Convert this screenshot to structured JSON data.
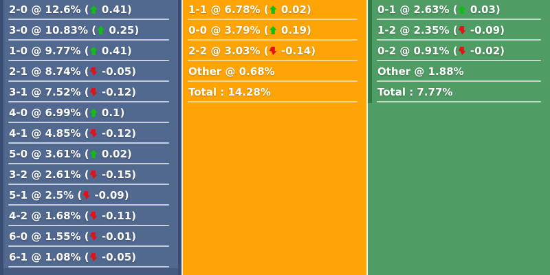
{
  "colors": {
    "page_bg": "#f6f2e6",
    "home_bg": "#51688f",
    "home_border": "#3a4e74",
    "home_divider": "#c7d0e0",
    "home_partial": "#475a80",
    "draw_bg": "#ffa405",
    "draw_divider": "#ffd695",
    "away_bg": "#4f9c64",
    "away_border": "#2f7c4b",
    "away_divider": "#c2dcc8",
    "up": "#0fbe12",
    "down": "#e31219",
    "text": "#ffffff"
  },
  "panels": {
    "home": {
      "cutoff_row_visible": true,
      "rows": [
        {
          "score": "2-0",
          "percent": "12.6%",
          "delta": "0.41",
          "direction": "up",
          "text": "2-0 @ 12.6% (",
          "delta_text": " 0.41)"
        },
        {
          "score": "3-0",
          "percent": "10.83%",
          "delta": "0.25",
          "direction": "up",
          "text": "3-0 @ 10.83% (",
          "delta_text": " 0.25)"
        },
        {
          "score": "1-0",
          "percent": "9.77%",
          "delta": "0.41",
          "direction": "up",
          "text": "1-0 @ 9.77% (",
          "delta_text": " 0.41)"
        },
        {
          "score": "2-1",
          "percent": "8.74%",
          "delta": "-0.05",
          "direction": "down",
          "text": "2-1 @ 8.74% (",
          "delta_text": " -0.05)"
        },
        {
          "score": "3-1",
          "percent": "7.52%",
          "delta": "-0.12",
          "direction": "down",
          "text": "3-1 @ 7.52% (",
          "delta_text": " -0.12)"
        },
        {
          "score": "4-0",
          "percent": "6.99%",
          "delta": "0.1",
          "direction": "up",
          "text": "4-0 @ 6.99% (",
          "delta_text": " 0.1)"
        },
        {
          "score": "4-1",
          "percent": "4.85%",
          "delta": "-0.12",
          "direction": "down",
          "text": "4-1 @ 4.85% (",
          "delta_text": " -0.12)"
        },
        {
          "score": "5-0",
          "percent": "3.61%",
          "delta": "0.02",
          "direction": "up",
          "text": "5-0 @ 3.61% (",
          "delta_text": " 0.02)"
        },
        {
          "score": "3-2",
          "percent": "2.61%",
          "delta": "-0.15",
          "direction": "down",
          "text": "3-2 @ 2.61% (",
          "delta_text": " -0.15)"
        },
        {
          "score": "5-1",
          "percent": "2.5%",
          "delta": "-0.09",
          "direction": "down",
          "text": "5-1 @ 2.5% (",
          "delta_text": " -0.09)"
        },
        {
          "score": "4-2",
          "percent": "1.68%",
          "delta": "-0.11",
          "direction": "down",
          "text": "4-2 @ 1.68% (",
          "delta_text": " -0.11)"
        },
        {
          "score": "6-0",
          "percent": "1.55%",
          "delta": "-0.01",
          "direction": "down",
          "text": "6-0 @ 1.55% (",
          "delta_text": " -0.01)"
        },
        {
          "score": "6-1",
          "percent": "1.08%",
          "delta": "-0.05",
          "direction": "down",
          "text": "6-1 @ 1.08% (",
          "delta_text": " -0.05)"
        }
      ]
    },
    "draw": {
      "rows": [
        {
          "score": "1-1",
          "percent": "6.78%",
          "delta": "0.02",
          "direction": "up",
          "text": "1-1 @ 6.78% (",
          "delta_text": " 0.02)"
        },
        {
          "score": "0-0",
          "percent": "3.79%",
          "delta": "0.19",
          "direction": "up",
          "text": "0-0 @ 3.79% (",
          "delta_text": " 0.19)"
        },
        {
          "score": "2-2",
          "percent": "3.03%",
          "delta": "-0.14",
          "direction": "down",
          "text": "2-2 @ 3.03% (",
          "delta_text": " -0.14)"
        },
        {
          "score": "Other",
          "percent": "0.68%",
          "text": "Other @ 0.68%"
        },
        {
          "score": "Total",
          "percent": "14.28%",
          "text": "Total : 14.28%"
        }
      ]
    },
    "away": {
      "rows": [
        {
          "score": "0-1",
          "percent": "2.63%",
          "delta": "0.03",
          "direction": "up",
          "text": "0-1 @ 2.63% (",
          "delta_text": " 0.03)"
        },
        {
          "score": "1-2",
          "percent": "2.35%",
          "delta": "-0.09",
          "direction": "down",
          "text": "1-2 @ 2.35% (",
          "delta_text": " -0.09)"
        },
        {
          "score": "0-2",
          "percent": "0.91%",
          "delta": "-0.02",
          "direction": "down",
          "text": "0-2 @ 0.91% (",
          "delta_text": " -0.02)"
        },
        {
          "score": "Other",
          "percent": "1.88%",
          "text": "Other @ 1.88%"
        },
        {
          "score": "Total",
          "percent": "7.77%",
          "text": "Total : 7.77%"
        }
      ]
    }
  }
}
